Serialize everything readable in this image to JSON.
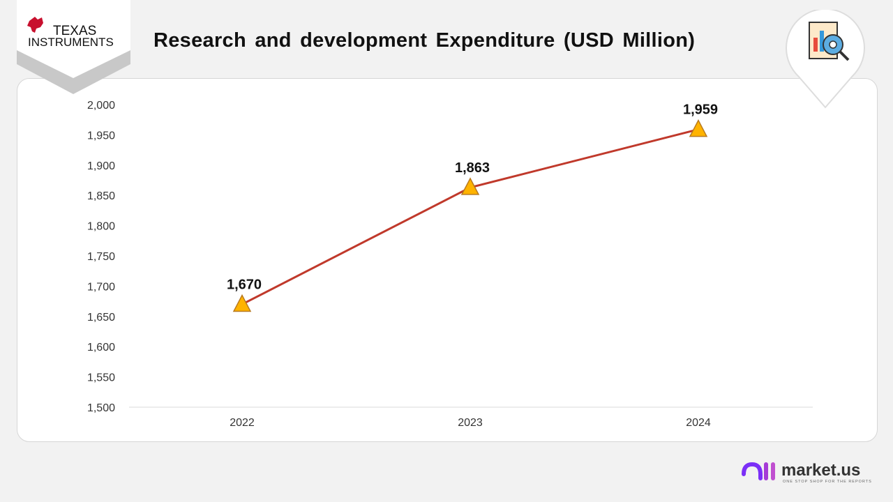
{
  "header": {
    "title": "Research and development Expenditure (USD Million)",
    "company_logo": "Texas Instruments",
    "company_logo_text": [
      "Texas",
      "Instruments"
    ]
  },
  "branding": {
    "name": "market.us",
    "tagline": "ONE STOP SHOP FOR THE REPORTS",
    "icon": "report-analytics-icon"
  },
  "chart_data": {
    "type": "line",
    "title": "Research and development Expenditure (USD Million)",
    "categories": [
      "2022",
      "2023",
      "2024"
    ],
    "values": [
      1670,
      1863,
      1959
    ],
    "data_labels": [
      "1,670",
      "1,863",
      "1,959"
    ],
    "ylim": [
      1500,
      2000
    ],
    "yticks": [
      "1,500",
      "1,550",
      "1,600",
      "1,650",
      "1,700",
      "1,750",
      "1,800",
      "1,850",
      "1,900",
      "1,950",
      "2,000"
    ],
    "grid": false,
    "marker": "triangle",
    "colors": {
      "line": "#c0392b",
      "marker": "#ffb300",
      "marker_edge": "#b7791f"
    }
  }
}
